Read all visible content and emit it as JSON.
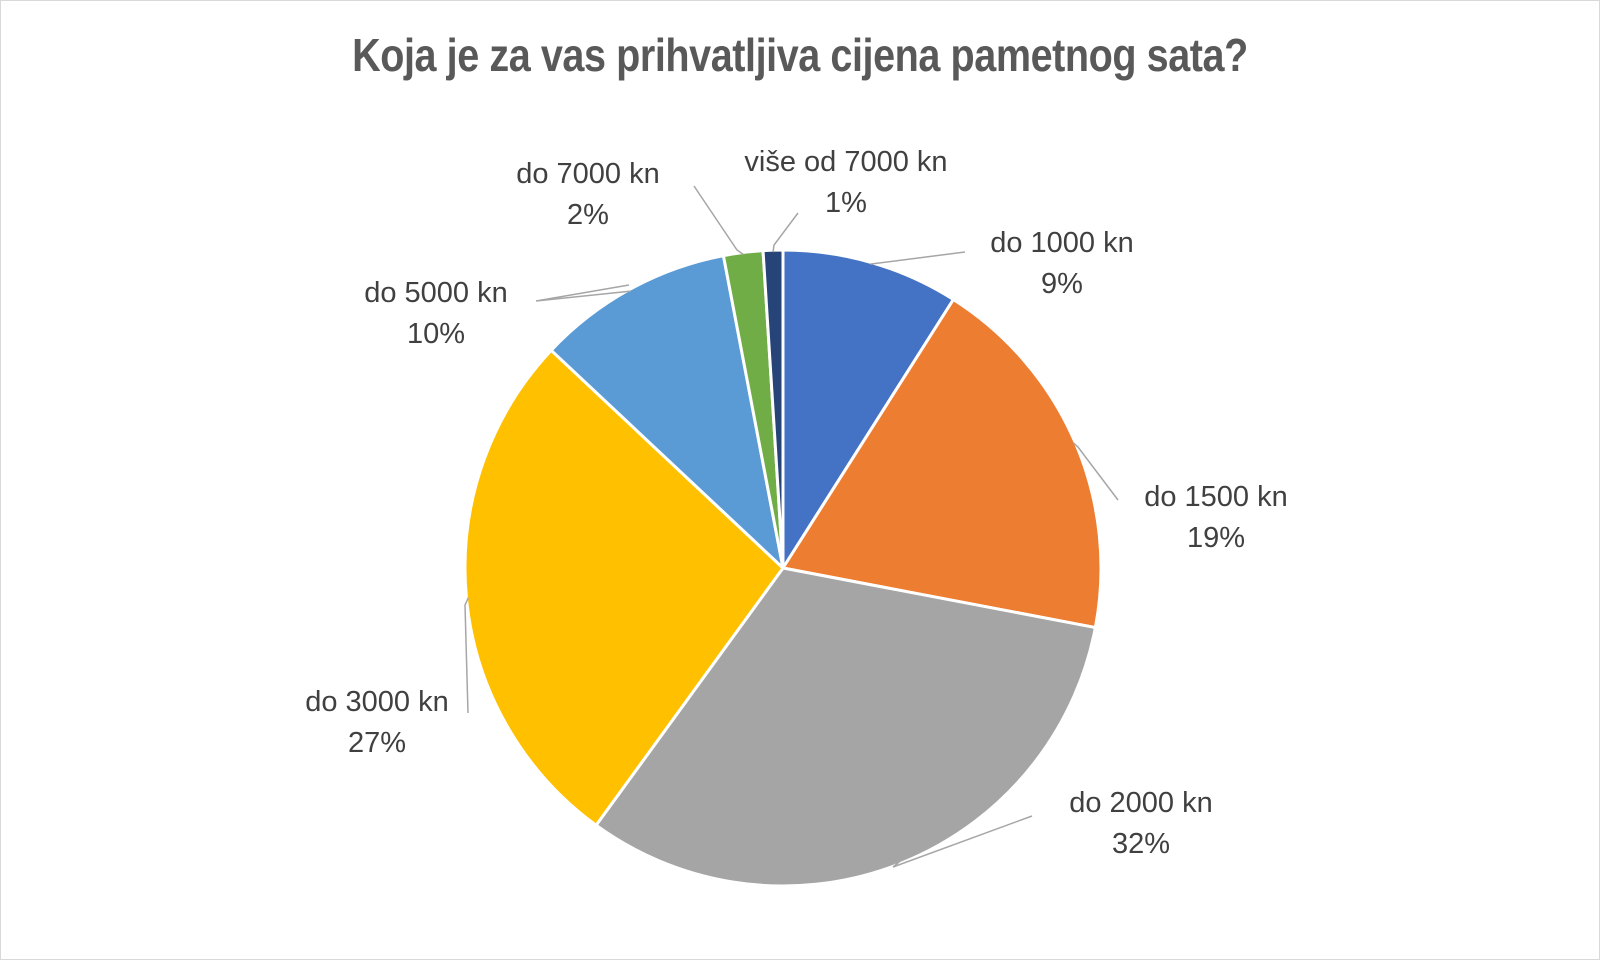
{
  "chart_data": {
    "type": "pie",
    "title": "Koja je za vas prihvatljiva cijena pametnog sata?",
    "categories": [
      "do 1000 kn",
      "do 1500 kn",
      "do 2000 kn",
      "do 3000 kn",
      "do 5000 kn",
      "do 7000 kn",
      "više od 7000 kn"
    ],
    "values": [
      9,
      19,
      32,
      27,
      10,
      2,
      1
    ],
    "value_labels": [
      "9%",
      "19%",
      "32%",
      "27%",
      "10%",
      "2%",
      "1%"
    ],
    "colors": [
      "#4472C4",
      "#ED7D31",
      "#A5A5A5",
      "#FFC000",
      "#5B9BD5",
      "#70AD47",
      "#264478"
    ],
    "start_angle": "12 o'clock",
    "direction": "clockwise",
    "legend": "none",
    "data_labels": "outside with leader lines"
  }
}
